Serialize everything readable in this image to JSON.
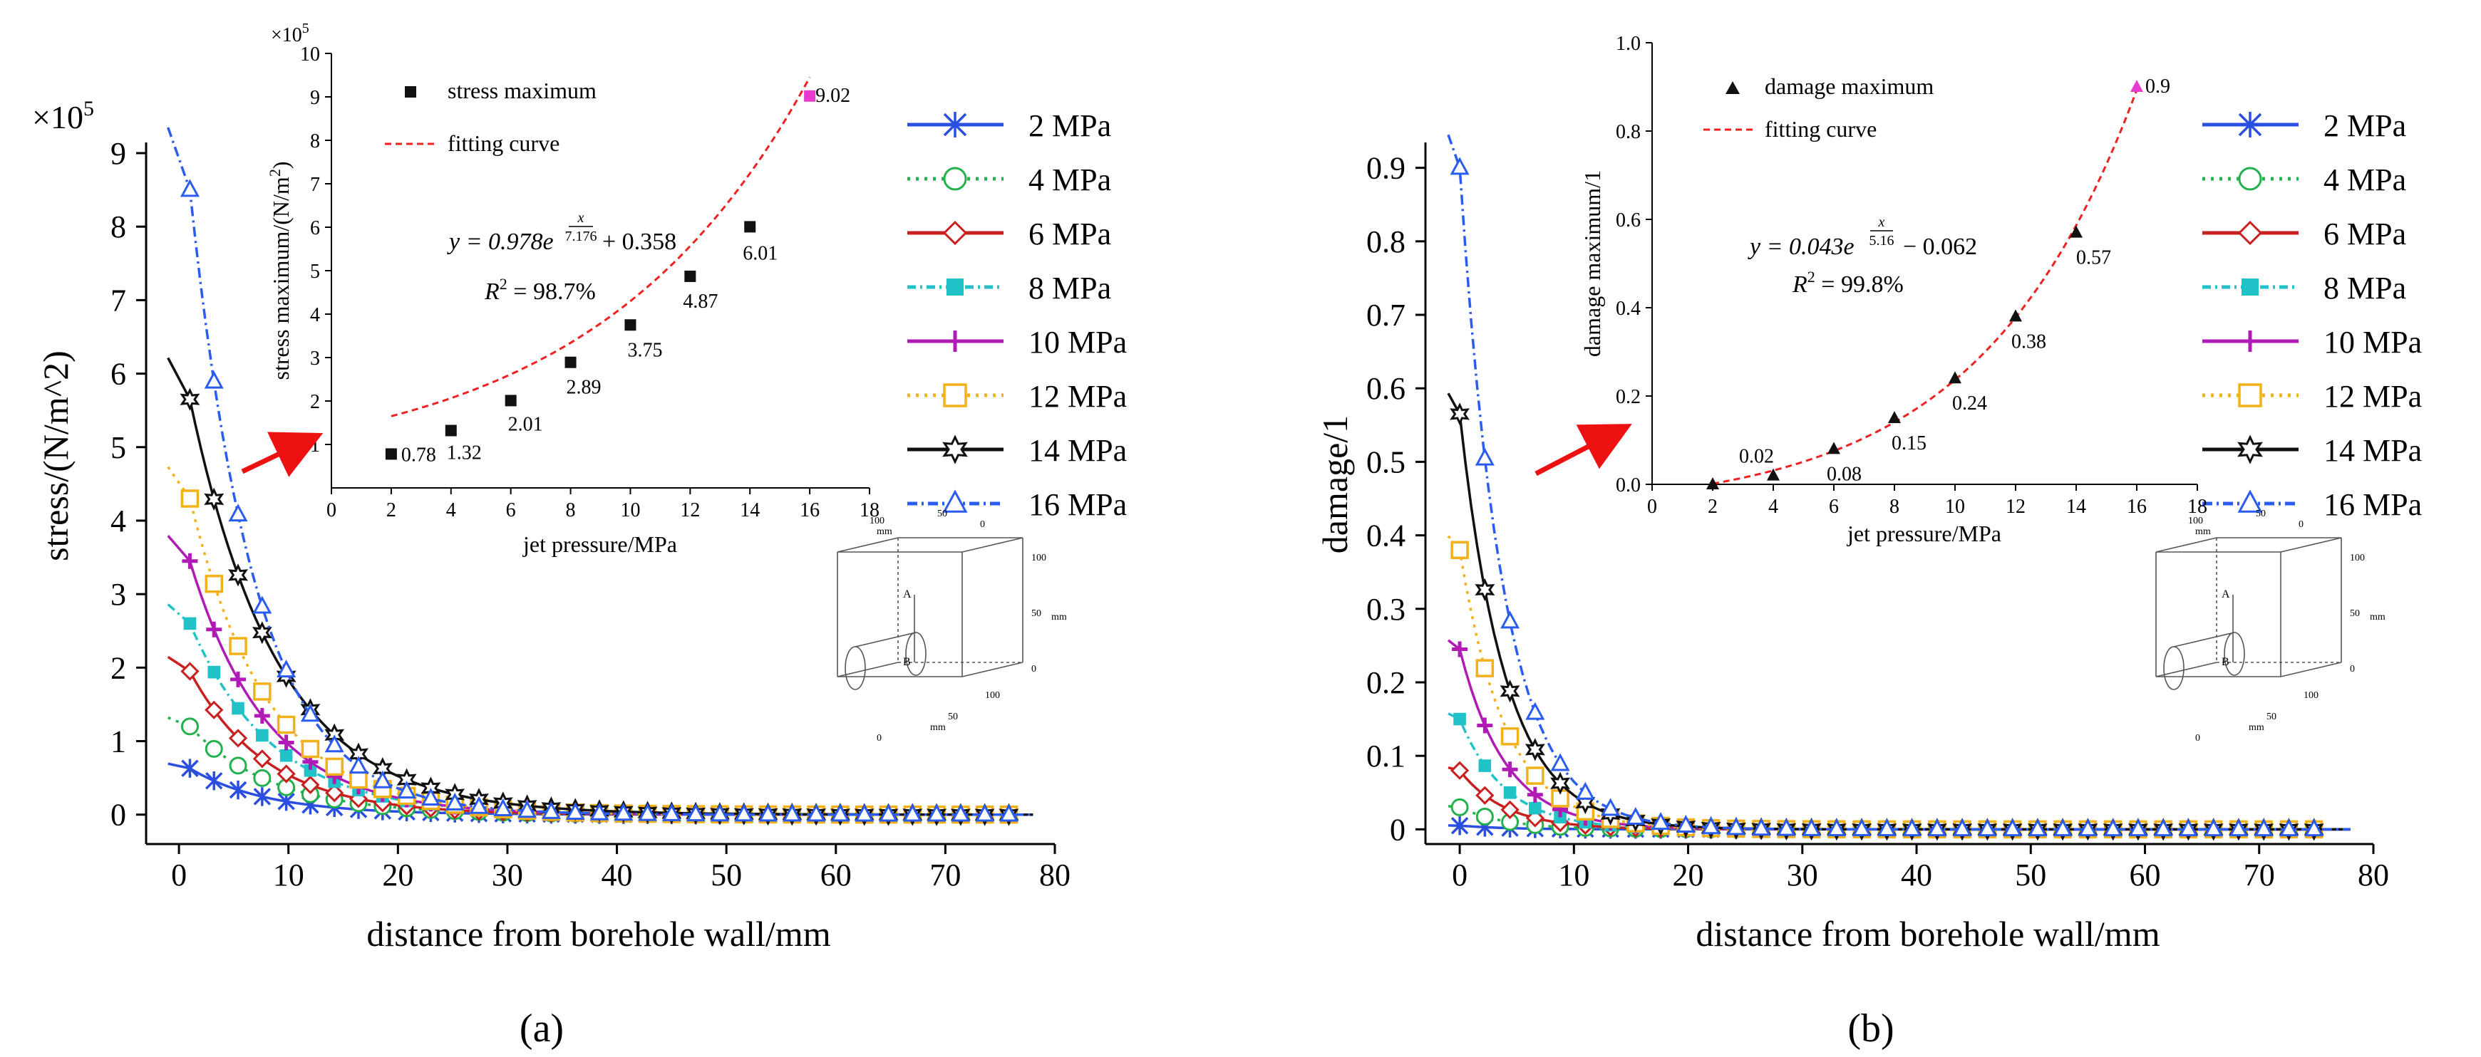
{
  "figure": {
    "panel_a_label": "(a)",
    "panel_b_label": "(b)"
  },
  "panels": [
    {
      "id": "a",
      "main": {
        "multiplier": "×10",
        "multiplier_exp": "5",
        "xlabel": "distance from borehole wall/mm",
        "ylabel": "stress/(N/m^2)"
      },
      "inset": {
        "multiplier": "×10",
        "multiplier_exp": "5",
        "xlabel": "jet pressure/MPa",
        "ylabel": "stress maximum/(N/m",
        "ylabel_sup": "2",
        "ylabel_end": ")",
        "legend_points": "stress maximum",
        "legend_fit": "fitting curve",
        "eq_lhs": "y = 0.978e",
        "eq_exp_num": "x",
        "eq_exp_den": "7.176",
        "eq_rhs": "+ 0.358",
        "r2": "R",
        "r2_sup": "2",
        "r2_val": " = 98.7%"
      },
      "box3d": {
        "top_tick": "100",
        "unit_top": "mm",
        "tick_50_top": "50",
        "tick_0_top": "0",
        "tick_100_right": "100",
        "unit_right": "mm",
        "tick_50_right": "50",
        "tick_0_right": "0",
        "tick_100_bottom": "100",
        "tick_50_bottom": "50",
        "tick_0_bottom": "0",
        "unit_bottom": "mm",
        "label_a": "A",
        "label_b": "B"
      }
    },
    {
      "id": "b",
      "main": {
        "xlabel": "distance from borehole wall/mm",
        "ylabel": "damage/1"
      },
      "inset": {
        "xlabel": "jet pressure/MPa",
        "ylabel": "damage maximum/1",
        "legend_points": "damage maximum",
        "legend_fit": "fitting curve",
        "eq_lhs": "y = 0.043e",
        "eq_exp_num": "x",
        "eq_exp_den": "5.16",
        "eq_rhs": "− 0.062",
        "r2": "R",
        "r2_sup": "2",
        "r2_val": " = 99.8%"
      },
      "box3d": {
        "top_tick": "100",
        "unit_top": "mm",
        "tick_50_top": "50",
        "tick_0_top": "0",
        "tick_100_right": "100",
        "unit_right": "mm",
        "tick_50_right": "50",
        "tick_0_right": "0",
        "tick_100_bottom": "100",
        "tick_50_bottom": "50",
        "tick_0_bottom": "0",
        "unit_bottom": "mm",
        "label_a": "A",
        "label_b": "B"
      }
    }
  ],
  "colors": {
    "2 MPa": "#2a4fe0",
    "4 MPa": "#22b14c",
    "6 MPa": "#c8201e",
    "8 MPa": "#20c2c8",
    "10 MPa": "#b01ab5",
    "12 MPa": "#f2b01a",
    "14 MPa": "#111111",
    "16 MPa": "#2a5cf0",
    "fit": "#ee2222",
    "arrow": "#ee1111"
  },
  "chart_data": [
    {
      "type": "line",
      "title": "",
      "xlabel": "distance from borehole wall/mm",
      "ylabel": "stress/(N/m^2)",
      "y_multiplier": "×10^5",
      "xlim": [
        -3,
        80
      ],
      "ylim": [
        -0.4,
        9
      ],
      "xticks": [
        0,
        10,
        20,
        30,
        40,
        50,
        60,
        70,
        80
      ],
      "yticks": [
        0,
        1,
        2,
        3,
        4,
        5,
        6,
        7,
        8,
        9
      ],
      "legend": [
        "2 MPa",
        "4 MPa",
        "6 MPa",
        "8 MPa",
        "10 MPa",
        "12 MPa",
        "14 MPa",
        "16 MPa"
      ],
      "series": [
        {
          "name": "2 MPa",
          "peak": 0.63,
          "decay": 7.0,
          "x0": 1
        },
        {
          "name": "4 MPa",
          "peak": 1.2,
          "decay": 7.5,
          "x0": 1
        },
        {
          "name": "6 MPa",
          "peak": 1.95,
          "decay": 7.0,
          "x0": 1
        },
        {
          "name": "8 MPa",
          "peak": 2.6,
          "decay": 7.5,
          "x0": 1
        },
        {
          "name": "10 MPa",
          "peak": 3.45,
          "decay": 7.0,
          "x0": 1
        },
        {
          "name": "12 MPa",
          "peak": 4.3,
          "decay": 7.0,
          "x0": 1
        },
        {
          "name": "14 MPa",
          "peak": 5.65,
          "decay": 8.0,
          "x0": 1
        },
        {
          "name": "16 MPa",
          "peak": 8.5,
          "decay": 6.0,
          "x0": 1
        }
      ]
    },
    {
      "type": "scatter",
      "title": "",
      "xlabel": "jet pressure/MPa",
      "ylabel": "stress maximum/(N/m^2)",
      "y_multiplier": "×10^5",
      "xlim": [
        0,
        18
      ],
      "ylim": [
        0,
        10
      ],
      "xticks": [
        0,
        2,
        4,
        6,
        8,
        10,
        12,
        14,
        16,
        18
      ],
      "yticks": [
        1,
        2,
        3,
        4,
        5,
        6,
        7,
        8,
        9,
        10
      ],
      "x": [
        2,
        4,
        6,
        8,
        10,
        12,
        14,
        16
      ],
      "y": [
        0.78,
        1.32,
        2.01,
        2.89,
        3.75,
        4.87,
        6.01,
        9.02
      ],
      "labels": [
        "0.78",
        "1.32",
        "2.01",
        "2.89",
        "3.75",
        "4.87",
        "6.01",
        "9.02"
      ],
      "fit": {
        "a": 0.978,
        "b": 7.176,
        "c": 0.358
      },
      "legend": [
        "stress maximum",
        "fitting curve"
      ]
    },
    {
      "type": "line",
      "title": "",
      "xlabel": "distance from borehole wall/mm",
      "ylabel": "damage/1",
      "xlim": [
        -3,
        80
      ],
      "ylim": [
        -0.02,
        0.92
      ],
      "xticks": [
        0,
        10,
        20,
        30,
        40,
        50,
        60,
        70,
        80
      ],
      "yticks": [
        0,
        0.1,
        0.2,
        0.3,
        0.4,
        0.5,
        0.6,
        0.7,
        0.8,
        0.9
      ],
      "yticklabels": [
        "0",
        "0.1",
        "0.2",
        "0.3",
        "0.4",
        "0.5",
        "0.6",
        "0.7",
        "0.8",
        "0.9"
      ],
      "legend": [
        "2 MPa",
        "4 MPa",
        "6 MPa",
        "8 MPa",
        "10 MPa",
        "12 MPa",
        "14 MPa",
        "16 MPa"
      ],
      "series": [
        {
          "name": "2 MPa",
          "peak": 0.005,
          "decay": 4.0,
          "x0": 0
        },
        {
          "name": "4 MPa",
          "peak": 0.03,
          "decay": 4.0,
          "x0": 0
        },
        {
          "name": "6 MPa",
          "peak": 0.08,
          "decay": 4.0,
          "x0": 0
        },
        {
          "name": "8 MPa",
          "peak": 0.15,
          "decay": 4.0,
          "x0": 0
        },
        {
          "name": "10 MPa",
          "peak": 0.245,
          "decay": 4.0,
          "x0": 0
        },
        {
          "name": "12 MPa",
          "peak": 0.38,
          "decay": 4.0,
          "x0": 0
        },
        {
          "name": "14 MPa",
          "peak": 0.565,
          "decay": 4.0,
          "x0": 0
        },
        {
          "name": "16 MPa",
          "peak": 0.9,
          "decay": 3.8,
          "x0": 0
        }
      ]
    },
    {
      "type": "scatter",
      "title": "",
      "xlabel": "jet pressure/MPa",
      "ylabel": "damage maximum/1",
      "xlim": [
        0,
        18
      ],
      "ylim": [
        0,
        1.0
      ],
      "xticks": [
        0,
        2,
        4,
        6,
        8,
        10,
        12,
        14,
        16,
        18
      ],
      "yticks": [
        0,
        0.2,
        0.4,
        0.6,
        0.8,
        1.0
      ],
      "yticklabels": [
        "0.0",
        "0.2",
        "0.4",
        "0.6",
        "0.8",
        "1.0"
      ],
      "x": [
        2,
        4,
        6,
        8,
        10,
        12,
        14,
        16
      ],
      "y": [
        0.0,
        0.02,
        0.08,
        0.15,
        0.24,
        0.38,
        0.57,
        0.9
      ],
      "labels": [
        "",
        "0.02",
        "0.08",
        "0.15",
        "0.24",
        "0.38",
        "0.57",
        "0.9"
      ],
      "fit": {
        "a": 0.043,
        "b": 5.16,
        "c": -0.062
      },
      "legend": [
        "damage maximum",
        "fitting curve"
      ]
    }
  ]
}
